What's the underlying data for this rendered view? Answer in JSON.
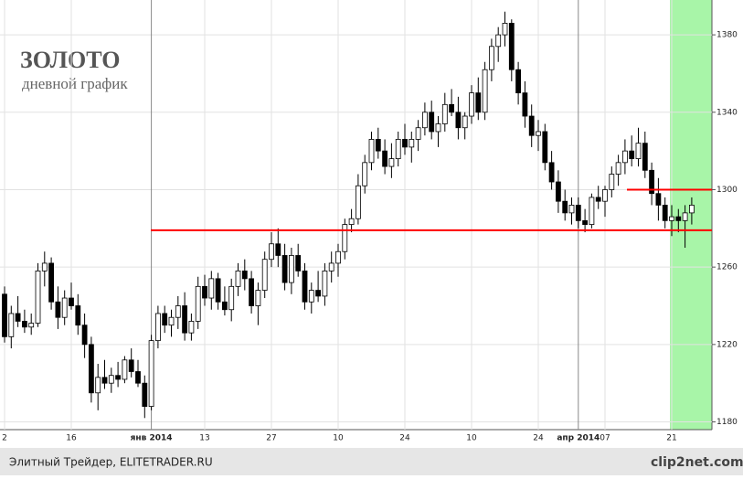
{
  "chart_data": {
    "type": "candlestick",
    "title": "ЗОЛОТО",
    "subtitle": "дневной график",
    "footer": "Элитный Трейдер, ELITETRADER.RU",
    "logo": "clip2net.com",
    "categories": [
      "2",
      null,
      null,
      null,
      null,
      null,
      null,
      null,
      null,
      null,
      "16",
      null,
      null,
      null,
      null,
      null,
      null,
      null,
      null,
      null,
      null,
      null,
      "янв 2014",
      null,
      null,
      null,
      null,
      null,
      null,
      null,
      "13",
      null,
      null,
      null,
      null,
      null,
      null,
      null,
      null,
      null,
      "27",
      null,
      null,
      null,
      null,
      null,
      null,
      null,
      null,
      null,
      "10",
      null,
      null,
      null,
      null,
      null,
      null,
      null,
      null,
      null,
      "24",
      null,
      null,
      null,
      null,
      null,
      null,
      null,
      null,
      null,
      "10",
      null,
      null,
      null,
      null,
      null,
      null,
      null,
      null,
      null,
      "24",
      null,
      null,
      null,
      null,
      null,
      "апр 2014",
      null,
      null,
      null,
      "07",
      null,
      null,
      null,
      null,
      null,
      null,
      null,
      null,
      null,
      "21",
      null,
      null,
      null
    ],
    "open": [
      1246,
      1224,
      1236,
      1232,
      1229,
      1231,
      1258,
      1262,
      1242,
      1234,
      1244,
      1240,
      1230,
      1220,
      1195,
      1203,
      1200,
      1204,
      1202,
      1212,
      1206,
      1200,
      1188,
      1222,
      1236,
      1230,
      1234,
      1240,
      1226,
      1232,
      1250,
      1244,
      1254,
      1242,
      1238,
      1250,
      1258,
      1254,
      1240,
      1248,
      1264,
      1272,
      1266,
      1252,
      1266,
      1258,
      1242,
      1248,
      1245,
      1258,
      1262,
      1268,
      1282,
      1285,
      1302,
      1314,
      1326,
      1320,
      1312,
      1316,
      1326,
      1322,
      1326,
      1332,
      1340,
      1330,
      1334,
      1344,
      1340,
      1332,
      1338,
      1350,
      1340,
      1362,
      1374,
      1380,
      1386,
      1362,
      1350,
      1338,
      1328,
      1330,
      1314,
      1304,
      1294,
      1288,
      1292,
      1284,
      1282,
      1296,
      1294,
      1300,
      1308,
      1314,
      1320,
      1316,
      1324,
      1310,
      1298,
      1292,
      1284,
      1286,
      1284,
      1288
    ],
    "high": [
      1250,
      1240,
      1245,
      1238,
      1236,
      1262,
      1268,
      1265,
      1250,
      1248,
      1252,
      1246,
      1236,
      1224,
      1210,
      1212,
      1208,
      1211,
      1214,
      1218,
      1212,
      1204,
      1225,
      1240,
      1240,
      1238,
      1245,
      1247,
      1236,
      1255,
      1256,
      1258,
      1257,
      1250,
      1254,
      1262,
      1264,
      1258,
      1252,
      1268,
      1278,
      1280,
      1272,
      1270,
      1272,
      1262,
      1252,
      1258,
      1262,
      1268,
      1272,
      1285,
      1290,
      1308,
      1318,
      1330,
      1332,
      1326,
      1324,
      1330,
      1334,
      1330,
      1336,
      1345,
      1346,
      1338,
      1350,
      1352,
      1348,
      1340,
      1354,
      1358,
      1366,
      1378,
      1384,
      1392,
      1388,
      1366,
      1356,
      1344,
      1336,
      1334,
      1320,
      1310,
      1300,
      1296,
      1296,
      1290,
      1298,
      1302,
      1302,
      1312,
      1318,
      1326,
      1328,
      1332,
      1330,
      1314,
      1306,
      1296,
      1292,
      1290,
      1292,
      1296
    ],
    "low": [
      1221,
      1218,
      1229,
      1226,
      1225,
      1229,
      1250,
      1238,
      1228,
      1230,
      1238,
      1225,
      1213,
      1190,
      1186,
      1197,
      1195,
      1198,
      1200,
      1203,
      1198,
      1182,
      1186,
      1218,
      1226,
      1224,
      1228,
      1222,
      1222,
      1228,
      1240,
      1238,
      1238,
      1235,
      1232,
      1245,
      1248,
      1236,
      1230,
      1244,
      1260,
      1260,
      1248,
      1246,
      1255,
      1238,
      1236,
      1242,
      1240,
      1252,
      1255,
      1264,
      1278,
      1282,
      1298,
      1310,
      1316,
      1308,
      1306,
      1312,
      1318,
      1314,
      1320,
      1328,
      1326,
      1322,
      1330,
      1338,
      1326,
      1326,
      1334,
      1336,
      1336,
      1356,
      1366,
      1374,
      1356,
      1344,
      1332,
      1322,
      1320,
      1310,
      1300,
      1288,
      1284,
      1282,
      1280,
      1278,
      1280,
      1290,
      1286,
      1296,
      1302,
      1308,
      1312,
      1312,
      1306,
      1292,
      1284,
      1280,
      1276,
      1278,
      1270,
      1282
    ],
    "close": [
      1224,
      1236,
      1232,
      1229,
      1231,
      1258,
      1262,
      1242,
      1234,
      1244,
      1240,
      1230,
      1220,
      1195,
      1203,
      1200,
      1204,
      1202,
      1212,
      1206,
      1200,
      1188,
      1222,
      1236,
      1230,
      1234,
      1240,
      1226,
      1232,
      1250,
      1244,
      1254,
      1242,
      1238,
      1250,
      1258,
      1254,
      1240,
      1248,
      1264,
      1272,
      1266,
      1252,
      1266,
      1258,
      1242,
      1248,
      1245,
      1258,
      1262,
      1268,
      1282,
      1285,
      1302,
      1314,
      1326,
      1320,
      1312,
      1316,
      1326,
      1322,
      1326,
      1332,
      1340,
      1330,
      1334,
      1344,
      1340,
      1332,
      1338,
      1350,
      1340,
      1362,
      1374,
      1380,
      1386,
      1362,
      1350,
      1338,
      1328,
      1330,
      1314,
      1304,
      1294,
      1288,
      1292,
      1284,
      1282,
      1296,
      1294,
      1300,
      1308,
      1314,
      1320,
      1316,
      1324,
      1310,
      1298,
      1292,
      1284,
      1286,
      1284,
      1288,
      1292
    ],
    "levels": [
      1279,
      1300
    ],
    "level_color": "#ff0000",
    "ylim": [
      1176,
      1398
    ],
    "yticks": [
      1180,
      1220,
      1260,
      1300,
      1340,
      1380
    ],
    "grid": true
  }
}
